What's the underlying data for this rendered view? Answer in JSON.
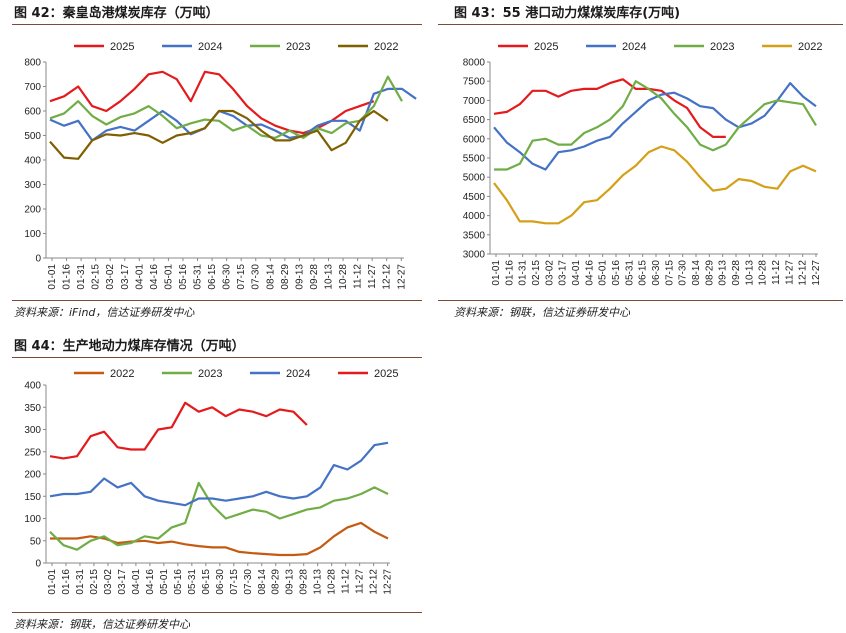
{
  "charts": [
    {
      "title": "图 42：秦皇岛港煤炭库存（万吨）",
      "source": "资料来源：iFind，信达证券研发中心",
      "chart_data": {
        "type": "line",
        "title": "",
        "xlabel": "",
        "ylabel": "",
        "ylim": [
          0,
          800
        ],
        "yticks": [
          "0",
          "100",
          "200",
          "300",
          "400",
          "500",
          "600",
          "700",
          "800"
        ],
        "xticks": [
          "01-01",
          "01-16",
          "01-31",
          "02-15",
          "03-02",
          "03-17",
          "04-01",
          "04-16",
          "05-01",
          "05-16",
          "05-31",
          "06-15",
          "06-30",
          "07-15",
          "07-30",
          "08-14",
          "08-29",
          "09-13",
          "09-28",
          "10-13",
          "10-28",
          "11-12",
          "11-27",
          "12-12",
          "12-27"
        ],
        "grid": false,
        "legend": "top",
        "series": [
          {
            "name": "2025",
            "color": "#e41a1c",
            "values": [
              640,
              660,
              700,
              620,
              600,
              640,
              690,
              750,
              760,
              730,
              640,
              760,
              750,
              690,
              620,
              570,
              540,
              520,
              510,
              530,
              560,
              600,
              620,
              640
            ]
          },
          {
            "name": "2024",
            "color": "#4472c4",
            "values": [
              565,
              540,
              560,
              480,
              520,
              535,
              520,
              560,
              600,
              560,
              505,
              530,
              600,
              580,
              540,
              545,
              520,
              490,
              500,
              540,
              560,
              560,
              520,
              670,
              690,
              690,
              650
            ]
          },
          {
            "name": "2023",
            "color": "#70ad47",
            "values": [
              570,
              590,
              640,
              580,
              545,
              575,
              590,
              620,
              580,
              530,
              550,
              565,
              560,
              520,
              540,
              500,
              490,
              520,
              490,
              530,
              510,
              550,
              560,
              620,
              740,
              640
            ]
          },
          {
            "name": "2022",
            "color": "#7f6000",
            "values": [
              475,
              410,
              405,
              480,
              505,
              500,
              510,
              500,
              470,
              500,
              510,
              530,
              600,
              600,
              570,
              520,
              480,
              480,
              500,
              520,
              440,
              470,
              560,
              600,
              560
            ]
          }
        ]
      }
    },
    {
      "title": "图 43：55 港口动力煤煤炭库存(万吨)",
      "source": "资料来源：钢联，信达证券研发中心",
      "chart_data": {
        "type": "line",
        "title": "",
        "xlabel": "",
        "ylabel": "",
        "ylim": [
          3000,
          8000
        ],
        "yticks": [
          "3000",
          "3500",
          "4000",
          "4500",
          "5000",
          "5500",
          "6000",
          "6500",
          "7000",
          "7500",
          "8000"
        ],
        "xticks": [
          "01-01",
          "01-16",
          "01-31",
          "02-15",
          "03-02",
          "03-17",
          "04-01",
          "04-16",
          "05-01",
          "05-16",
          "05-31",
          "06-15",
          "06-30",
          "07-15",
          "07-30",
          "08-14",
          "08-29",
          "09-13",
          "09-28",
          "10-13",
          "10-28",
          "11-12",
          "11-27",
          "12-12",
          "12-27"
        ],
        "grid": false,
        "legend": "top",
        "series": [
          {
            "name": "2025",
            "color": "#e41a1c",
            "values": [
              6650,
              6700,
              6900,
              7250,
              7250,
              7100,
              7250,
              7300,
              7300,
              7450,
              7550,
              7300,
              7300,
              7250,
              7000,
              6800,
              6300,
              6050,
              6050
            ]
          },
          {
            "name": "2024",
            "color": "#4472c4",
            "values": [
              6300,
              5900,
              5650,
              5350,
              5200,
              5650,
              5700,
              5800,
              5950,
              6050,
              6400,
              6700,
              7000,
              7150,
              7200,
              7050,
              6850,
              6800,
              6500,
              6300,
              6400,
              6600,
              7000,
              7450,
              7100,
              6850
            ]
          },
          {
            "name": "2023",
            "color": "#70ad47",
            "values": [
              5200,
              5200,
              5350,
              5950,
              6000,
              5850,
              5850,
              6150,
              6300,
              6500,
              6850,
              7500,
              7300,
              7050,
              6650,
              6300,
              5850,
              5700,
              5850,
              6300,
              6600,
              6900,
              7000,
              6950,
              6900,
              6350
            ]
          },
          {
            "name": "2022",
            "color": "#d4a017",
            "values": [
              4850,
              4400,
              3850,
              3850,
              3800,
              3800,
              4000,
              4350,
              4400,
              4700,
              5050,
              5300,
              5650,
              5800,
              5700,
              5400,
              5000,
              4650,
              4700,
              4950,
              4900,
              4750,
              4700,
              5150,
              5300,
              5150
            ]
          }
        ]
      }
    },
    {
      "title": "图 44：生产地动力煤库存情况（万吨）",
      "source": "资料来源：钢联，信达证券研发中心",
      "chart_data": {
        "type": "line",
        "title": "",
        "xlabel": "",
        "ylabel": "",
        "ylim": [
          0,
          400
        ],
        "yticks": [
          "0",
          "50",
          "100",
          "150",
          "200",
          "250",
          "300",
          "350",
          "400"
        ],
        "xticks": [
          "01-01",
          "01-16",
          "01-31",
          "02-15",
          "03-02",
          "03-17",
          "04-01",
          "04-16",
          "05-01",
          "05-16",
          "05-31",
          "06-15",
          "06-30",
          "07-15",
          "07-30",
          "08-14",
          "08-29",
          "09-13",
          "09-28",
          "10-13",
          "10-28",
          "11-12",
          "11-27",
          "12-12",
          "12-27"
        ],
        "grid": false,
        "legend": "top",
        "series": [
          {
            "name": "2022",
            "color": "#c55a11",
            "values": [
              55,
              55,
              55,
              60,
              55,
              45,
              48,
              50,
              45,
              48,
              42,
              38,
              35,
              35,
              25,
              22,
              20,
              18,
              18,
              20,
              35,
              60,
              80,
              90,
              70,
              55
            ]
          },
          {
            "name": "2023",
            "color": "#70ad47",
            "values": [
              70,
              40,
              30,
              50,
              60,
              40,
              45,
              60,
              55,
              80,
              90,
              180,
              130,
              100,
              110,
              120,
              115,
              100,
              110,
              120,
              125,
              140,
              145,
              155,
              170,
              155
            ]
          },
          {
            "name": "2024",
            "color": "#4472c4",
            "values": [
              150,
              155,
              155,
              160,
              190,
              170,
              180,
              150,
              140,
              135,
              130,
              145,
              145,
              140,
              145,
              150,
              160,
              150,
              145,
              150,
              170,
              220,
              210,
              230,
              265,
              270
            ]
          },
          {
            "name": "2025",
            "color": "#e41a1c",
            "values": [
              240,
              235,
              240,
              285,
              295,
              260,
              255,
              255,
              300,
              305,
              360,
              340,
              350,
              330,
              345,
              340,
              330,
              345,
              340,
              310
            ]
          }
        ]
      }
    }
  ]
}
